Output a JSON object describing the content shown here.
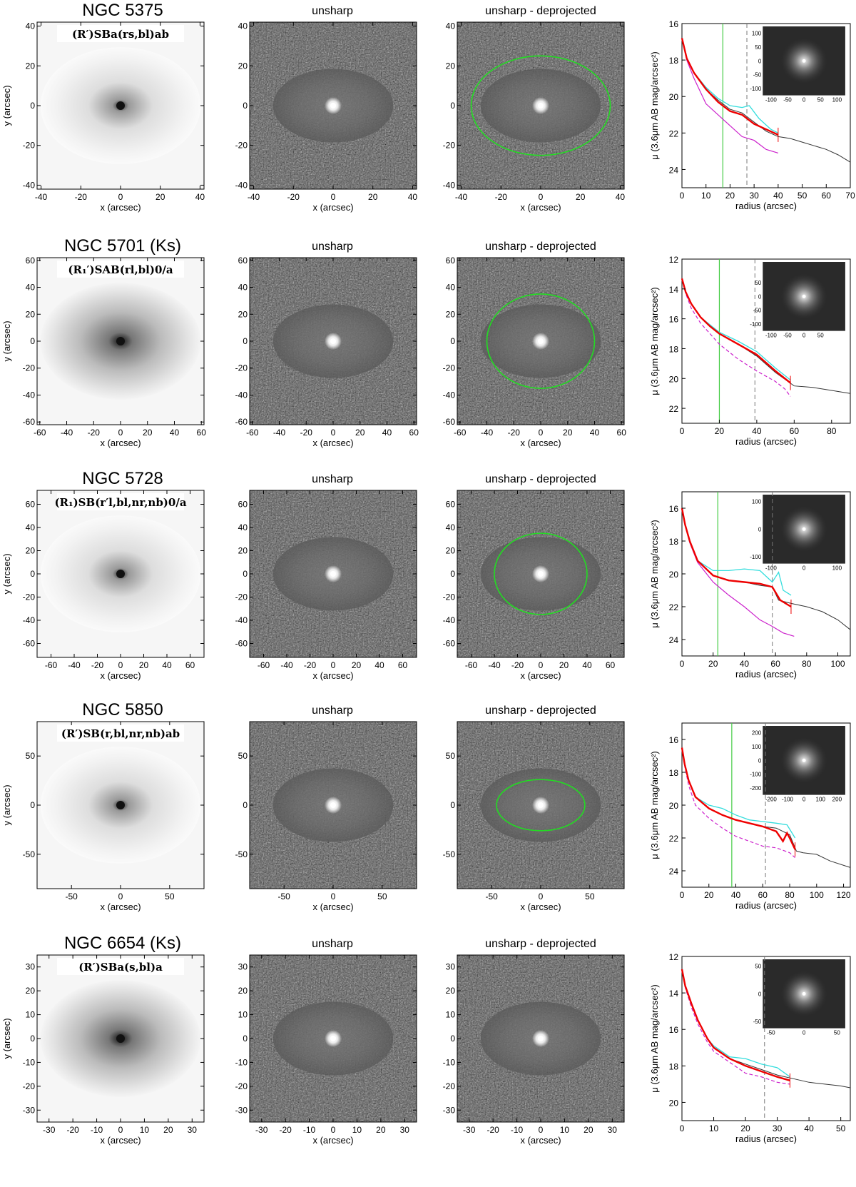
{
  "panel_titles": {
    "unsharp": "unsharp",
    "deprojected": "unsharp - deprojected"
  },
  "axis_labels": {
    "x": "x (arcsec)",
    "y": "y (arcsec)",
    "radius": "radius (arcsec)",
    "mu": "μ (3.6μm AB mag/arcsec²)"
  },
  "colors": {
    "profile_main": "#ee0000",
    "profile_cyan": "#33dddd",
    "profile_magenta": "#cc22cc",
    "profile_black": "#333333",
    "ellipse": "#22dd22",
    "vline_green": "#44cc44"
  },
  "galaxies": [
    {
      "name": "NGC 5375",
      "classification": "(R′)SBa(rs,bl)ab",
      "img_range": 42,
      "img_ticks": [
        -40,
        -20,
        0,
        20,
        40
      ],
      "img_style": "light",
      "ellipse": {
        "a": 35,
        "b": 25
      },
      "profile": {
        "xmax": 70,
        "xticks": [
          0,
          10,
          20,
          30,
          40,
          50,
          60,
          70
        ],
        "ymin": 16,
        "ymax": 25,
        "yticks": [
          16,
          18,
          20,
          22,
          24
        ],
        "green_line": 17,
        "dashed_line": 27,
        "inset_ticks": [
          -100,
          -50,
          0,
          50,
          100
        ],
        "black": [
          [
            0,
            16.8
          ],
          [
            2,
            17.9
          ],
          [
            5,
            18.7
          ],
          [
            10,
            19.6
          ],
          [
            15,
            20.2
          ],
          [
            20,
            20.7
          ],
          [
            25,
            20.9
          ],
          [
            30,
            21.4
          ],
          [
            35,
            21.9
          ],
          [
            40,
            22.2
          ],
          [
            45,
            22.3
          ],
          [
            50,
            22.5
          ],
          [
            55,
            22.7
          ],
          [
            60,
            22.9
          ],
          [
            65,
            23.2
          ],
          [
            70,
            23.6
          ]
        ],
        "red": [
          [
            0,
            16.8
          ],
          [
            2,
            17.9
          ],
          [
            5,
            18.7
          ],
          [
            10,
            19.6
          ],
          [
            15,
            20.3
          ],
          [
            20,
            20.8
          ],
          [
            25,
            21.0
          ],
          [
            30,
            21.5
          ],
          [
            35,
            21.8
          ],
          [
            40,
            22.1
          ]
        ],
        "cyan": [
          [
            0,
            16.8
          ],
          [
            2,
            17.9
          ],
          [
            5,
            18.7
          ],
          [
            10,
            19.5
          ],
          [
            15,
            20.1
          ],
          [
            20,
            20.5
          ],
          [
            25,
            20.6
          ],
          [
            28,
            20.5
          ],
          [
            32,
            21.2
          ],
          [
            37,
            21.8
          ],
          [
            40,
            22.0
          ]
        ],
        "magenta": [
          [
            0,
            16.8
          ],
          [
            2,
            18.0
          ],
          [
            5,
            19.0
          ],
          [
            10,
            20.4
          ],
          [
            15,
            21.0
          ],
          [
            20,
            21.6
          ],
          [
            25,
            22.2
          ],
          [
            30,
            22.4
          ],
          [
            35,
            22.9
          ],
          [
            40,
            23.1
          ]
        ],
        "magenta_dashed": false
      }
    },
    {
      "name": "NGC 5701   (Ks)",
      "classification": "(R₁′)SAB(rl,bl)0/a",
      "img_range": 62,
      "img_ticks": [
        -60,
        -40,
        -20,
        0,
        20,
        40,
        60
      ],
      "img_style": "dark",
      "ellipse": {
        "a": 40,
        "b": 35
      },
      "profile": {
        "xmax": 90,
        "xticks": [
          0,
          20,
          40,
          60,
          80
        ],
        "ymin": 12,
        "ymax": 23,
        "yticks": [
          12,
          14,
          16,
          18,
          20,
          22
        ],
        "green_line": 20,
        "dashed_line": 39,
        "inset_ticks": [
          -100,
          -50,
          0,
          50
        ],
        "black": [
          [
            0,
            13.3
          ],
          [
            2,
            14.2
          ],
          [
            5,
            15.0
          ],
          [
            10,
            15.9
          ],
          [
            15,
            16.5
          ],
          [
            20,
            17.0
          ],
          [
            30,
            17.7
          ],
          [
            40,
            18.5
          ],
          [
            50,
            19.6
          ],
          [
            60,
            20.5
          ],
          [
            70,
            20.6
          ],
          [
            80,
            20.8
          ],
          [
            90,
            21.0
          ]
        ],
        "red": [
          [
            0,
            13.3
          ],
          [
            2,
            14.2
          ],
          [
            5,
            15.0
          ],
          [
            10,
            15.9
          ],
          [
            15,
            16.5
          ],
          [
            20,
            17.0
          ],
          [
            30,
            17.7
          ],
          [
            40,
            18.4
          ],
          [
            50,
            19.5
          ],
          [
            58,
            20.3
          ]
        ],
        "cyan": [
          [
            0,
            13.3
          ],
          [
            2,
            14.2
          ],
          [
            5,
            15.0
          ],
          [
            10,
            15.9
          ],
          [
            15,
            16.4
          ],
          [
            20,
            16.9
          ],
          [
            30,
            17.5
          ],
          [
            40,
            18.2
          ],
          [
            50,
            19.3
          ],
          [
            58,
            20.1
          ]
        ],
        "magenta": [
          [
            0,
            13.3
          ],
          [
            2,
            14.3
          ],
          [
            5,
            15.3
          ],
          [
            10,
            16.3
          ],
          [
            15,
            17.0
          ],
          [
            20,
            17.7
          ],
          [
            30,
            18.7
          ],
          [
            40,
            19.5
          ],
          [
            50,
            20.2
          ],
          [
            55,
            20.7
          ],
          [
            58,
            21.2
          ]
        ],
        "magenta_dashed": true
      }
    },
    {
      "name": "NGC 5728",
      "classification": "(R₁)SB(r′l,bl,nr,nb)0/a",
      "img_range": 72,
      "img_ticks": [
        -60,
        -40,
        -20,
        0,
        20,
        40,
        60
      ],
      "img_style": "light",
      "ellipse": {
        "a": 40,
        "b": 35
      },
      "profile": {
        "xmax": 108,
        "xticks": [
          0,
          20,
          40,
          60,
          80,
          100
        ],
        "ymin": 15,
        "ymax": 25,
        "yticks": [
          16,
          18,
          20,
          22,
          24
        ],
        "green_line": 23,
        "dashed_line": 58,
        "inset_ticks": [
          -100,
          0,
          100
        ],
        "black": [
          [
            0,
            16.0
          ],
          [
            2,
            17.0
          ],
          [
            5,
            18.0
          ],
          [
            10,
            19.2
          ],
          [
            20,
            20.1
          ],
          [
            30,
            20.4
          ],
          [
            40,
            20.5
          ],
          [
            50,
            20.7
          ],
          [
            58,
            20.8
          ],
          [
            62,
            21.6
          ],
          [
            70,
            21.8
          ],
          [
            80,
            22.0
          ],
          [
            90,
            22.3
          ],
          [
            100,
            22.8
          ],
          [
            108,
            23.4
          ]
        ],
        "red": [
          [
            0,
            16.0
          ],
          [
            2,
            17.0
          ],
          [
            5,
            18.0
          ],
          [
            10,
            19.2
          ],
          [
            20,
            20.1
          ],
          [
            30,
            20.4
          ],
          [
            40,
            20.5
          ],
          [
            50,
            20.6
          ],
          [
            58,
            20.8
          ],
          [
            63,
            21.6
          ],
          [
            70,
            22.0
          ]
        ],
        "cyan": [
          [
            0,
            16.0
          ],
          [
            2,
            17.0
          ],
          [
            5,
            18.0
          ],
          [
            10,
            19.2
          ],
          [
            20,
            19.8
          ],
          [
            30,
            19.8
          ],
          [
            40,
            19.7
          ],
          [
            50,
            19.8
          ],
          [
            58,
            20.5
          ],
          [
            62,
            19.9
          ],
          [
            65,
            21.0
          ],
          [
            70,
            21.3
          ]
        ],
        "magenta": [
          [
            0,
            16.0
          ],
          [
            2,
            17.0
          ],
          [
            5,
            18.1
          ],
          [
            10,
            19.3
          ],
          [
            20,
            20.5
          ],
          [
            30,
            21.3
          ],
          [
            40,
            22.0
          ],
          [
            50,
            22.8
          ],
          [
            58,
            23.2
          ],
          [
            65,
            23.6
          ],
          [
            72,
            23.8
          ]
        ],
        "magenta_dashed": false
      }
    },
    {
      "name": "NGC 5850",
      "classification": "(R′)SB(r,bl,nr,nb)ab",
      "img_range": 85,
      "img_ticks": [
        -50,
        0,
        50
      ],
      "img_style": "light",
      "ellipse": {
        "a": 45,
        "b": 26
      },
      "profile": {
        "xmax": 125,
        "xticks": [
          0,
          20,
          40,
          60,
          80,
          100,
          120
        ],
        "ymin": 15,
        "ymax": 25,
        "yticks": [
          16,
          18,
          20,
          22,
          24
        ],
        "green_line": 37,
        "dashed_line": 62,
        "inset_ticks": [
          -200,
          -100,
          0,
          100,
          200
        ],
        "black": [
          [
            0,
            16.5
          ],
          [
            2,
            17.5
          ],
          [
            5,
            18.5
          ],
          [
            10,
            19.5
          ],
          [
            20,
            20.2
          ],
          [
            30,
            20.6
          ],
          [
            40,
            20.9
          ],
          [
            50,
            21.1
          ],
          [
            60,
            21.3
          ],
          [
            70,
            21.4
          ],
          [
            80,
            21.8
          ],
          [
            85,
            22.8
          ],
          [
            90,
            22.9
          ],
          [
            100,
            23.0
          ],
          [
            110,
            23.4
          ],
          [
            125,
            23.8
          ]
        ],
        "red": [
          [
            0,
            16.5
          ],
          [
            2,
            17.5
          ],
          [
            5,
            18.5
          ],
          [
            10,
            19.5
          ],
          [
            20,
            20.2
          ],
          [
            30,
            20.6
          ],
          [
            40,
            20.9
          ],
          [
            50,
            21.1
          ],
          [
            60,
            21.3
          ],
          [
            70,
            21.6
          ],
          [
            75,
            22.2
          ],
          [
            78,
            21.7
          ],
          [
            80,
            22.0
          ],
          [
            84,
            22.7
          ]
        ],
        "cyan": [
          [
            0,
            16.5
          ],
          [
            2,
            17.5
          ],
          [
            5,
            18.5
          ],
          [
            10,
            19.5
          ],
          [
            20,
            20.0
          ],
          [
            30,
            20.2
          ],
          [
            40,
            20.6
          ],
          [
            50,
            20.9
          ],
          [
            60,
            21.0
          ],
          [
            70,
            21.1
          ],
          [
            78,
            21.2
          ],
          [
            84,
            22.0
          ]
        ],
        "magenta": [
          [
            0,
            16.5
          ],
          [
            2,
            17.6
          ],
          [
            5,
            18.8
          ],
          [
            10,
            20.0
          ],
          [
            20,
            20.8
          ],
          [
            30,
            21.4
          ],
          [
            40,
            21.9
          ],
          [
            50,
            22.2
          ],
          [
            60,
            22.5
          ],
          [
            70,
            22.6
          ],
          [
            80,
            22.9
          ],
          [
            84,
            23.2
          ]
        ],
        "magenta_dashed": true
      }
    },
    {
      "name": "NGC 6654   (Ks)",
      "classification": "(R′)SBa(s,bl)a",
      "img_range": 35,
      "img_ticks": [
        -30,
        -20,
        -10,
        0,
        10,
        20,
        30
      ],
      "img_style": "dark",
      "ellipse": null,
      "profile": {
        "xmax": 53,
        "xticks": [
          0,
          10,
          20,
          30,
          40,
          50
        ],
        "ymin": 12,
        "ymax": 21,
        "yticks": [
          12,
          14,
          16,
          18,
          20
        ],
        "green_line": null,
        "dashed_line": 26,
        "inset_ticks": [
          -50,
          0,
          50
        ],
        "black": [
          [
            0,
            12.7
          ],
          [
            1,
            13.6
          ],
          [
            3,
            14.6
          ],
          [
            5,
            15.5
          ],
          [
            8,
            16.5
          ],
          [
            10,
            17.0
          ],
          [
            15,
            17.6
          ],
          [
            20,
            17.9
          ],
          [
            25,
            18.2
          ],
          [
            30,
            18.5
          ],
          [
            35,
            18.7
          ],
          [
            40,
            18.9
          ],
          [
            45,
            19.0
          ],
          [
            50,
            19.1
          ],
          [
            53,
            19.2
          ]
        ],
        "red": [
          [
            0,
            12.7
          ],
          [
            1,
            13.6
          ],
          [
            3,
            14.6
          ],
          [
            5,
            15.5
          ],
          [
            8,
            16.5
          ],
          [
            10,
            17.0
          ],
          [
            15,
            17.6
          ],
          [
            20,
            18.0
          ],
          [
            25,
            18.3
          ],
          [
            30,
            18.6
          ],
          [
            34,
            18.8
          ]
        ],
        "cyan": [
          [
            0,
            12.7
          ],
          [
            1,
            13.6
          ],
          [
            3,
            14.6
          ],
          [
            5,
            15.5
          ],
          [
            8,
            16.5
          ],
          [
            10,
            16.9
          ],
          [
            15,
            17.5
          ],
          [
            20,
            17.6
          ],
          [
            25,
            17.9
          ],
          [
            30,
            18.1
          ],
          [
            34,
            18.6
          ]
        ],
        "magenta": [
          [
            0,
            12.7
          ],
          [
            1,
            13.7
          ],
          [
            3,
            14.8
          ],
          [
            5,
            15.7
          ],
          [
            8,
            16.7
          ],
          [
            10,
            17.2
          ],
          [
            15,
            17.8
          ],
          [
            20,
            18.4
          ],
          [
            25,
            18.6
          ],
          [
            30,
            18.9
          ],
          [
            34,
            19.0
          ]
        ],
        "magenta_dashed": true
      }
    }
  ]
}
